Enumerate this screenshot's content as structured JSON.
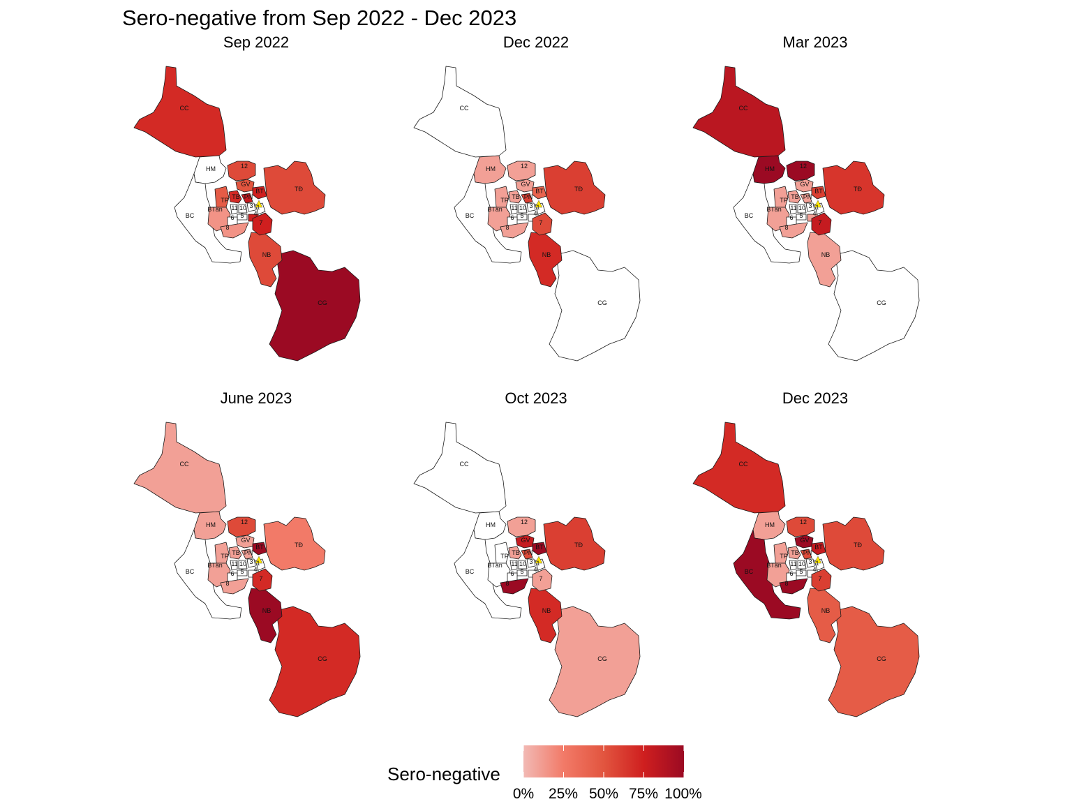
{
  "title": "Sero-negative from Sep 2022 - Dec 2023",
  "legend": {
    "title": "Sero-negative",
    "ticks": [
      "0%",
      "25%",
      "50%",
      "75%",
      "100%"
    ],
    "tick_values": [
      0,
      25,
      50,
      75,
      100
    ],
    "colors": [
      "#f2b9b4",
      "#f27a68",
      "#e2553f",
      "#cf1f1f",
      "#9b0a23"
    ]
  },
  "district_labels": [
    "CC",
    "HM",
    "12",
    "GV",
    "BT",
    "PN",
    "TB",
    "TP",
    "BTân",
    "11",
    "10",
    "5",
    "6",
    "8",
    "1",
    "3",
    "4",
    "7",
    "TĐ",
    "BC",
    "NB",
    "CG"
  ],
  "panels": [
    {
      "title": "Sep 2022",
      "values": {
        "CC": 70,
        "HM": 0,
        "12": 55,
        "GV": 50,
        "BT": 75,
        "PN": 80,
        "TB": 70,
        "TP": 45,
        "BTân": 15,
        "11": 0,
        "10": 0,
        "5": 0,
        "6": 0,
        "8": 15,
        "1": 0,
        "3": 0,
        "4": 75,
        "7": 75,
        "TĐ": 55,
        "BC": 0,
        "NB": 55,
        "CG": 100
      }
    },
    {
      "title": "Dec 2022",
      "values": {
        "CC": 0,
        "HM": 10,
        "12": 10,
        "GV": 10,
        "BT": 40,
        "PN": 60,
        "TB": 10,
        "TP": 10,
        "BTân": 10,
        "11": 0,
        "10": 0,
        "5": 0,
        "6": 0,
        "8": 10,
        "1": 0,
        "3": 0,
        "4": 0,
        "7": 55,
        "TĐ": 60,
        "BC": 0,
        "NB": 70,
        "CG": 0
      }
    },
    {
      "title": "Mar 2023",
      "values": {
        "CC": 85,
        "HM": 100,
        "12": 100,
        "GV": 10,
        "BT": 60,
        "PN": 10,
        "TB": 10,
        "TP": 10,
        "BTân": 10,
        "11": 0,
        "10": 0,
        "5": 0,
        "6": 0,
        "8": 10,
        "1": 0,
        "3": 0,
        "4": 10,
        "7": 80,
        "TĐ": 65,
        "BC": 0,
        "NB": 10,
        "CG": 0
      }
    },
    {
      "title": "June 2023",
      "values": {
        "CC": 10,
        "HM": 10,
        "12": 55,
        "GV": 10,
        "BT": 100,
        "PN": 10,
        "TB": 10,
        "TP": 10,
        "BTân": 10,
        "11": 0,
        "10": 0,
        "5": 0,
        "6": 0,
        "8": 10,
        "1": 0,
        "3": 0,
        "4": 0,
        "7": 70,
        "TĐ": 25,
        "BC": 0,
        "NB": 100,
        "CG": 70
      }
    },
    {
      "title": "Oct 2023",
      "values": {
        "CC": 0,
        "HM": 0,
        "12": 10,
        "GV": 80,
        "BT": 100,
        "PN": 55,
        "TB": 10,
        "TP": 0,
        "BTân": 0,
        "11": 0,
        "10": 0,
        "5": 0,
        "6": 0,
        "8": 100,
        "1": 0,
        "3": 0,
        "4": 0,
        "7": 10,
        "TĐ": 60,
        "BC": 0,
        "NB": 70,
        "CG": 10
      }
    },
    {
      "title": "Dec 2023",
      "values": {
        "CC": 70,
        "HM": 10,
        "12": 55,
        "GV": 100,
        "BT": 80,
        "PN": 55,
        "TB": 10,
        "TP": 10,
        "BTân": 10,
        "11": 0,
        "10": 0,
        "5": 0,
        "6": 0,
        "8": 100,
        "1": 0,
        "3": 0,
        "4": 0,
        "7": 60,
        "TĐ": 55,
        "BC": 100,
        "NB": 45,
        "CG": 45
      }
    }
  ]
}
